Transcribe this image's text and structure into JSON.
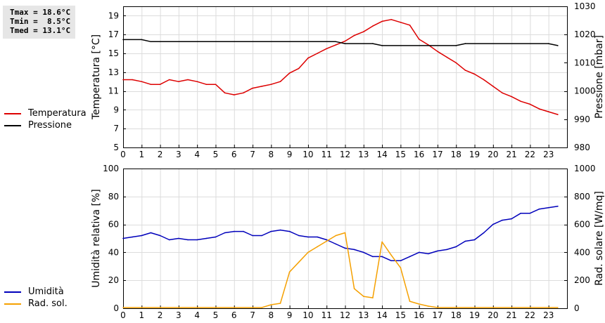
{
  "stats": {
    "tmax": "Tmax = 18.6°C",
    "tmin": "Tmin =  8.5°C",
    "tmed": "Tmed = 13.1°C"
  },
  "legend_top": [
    {
      "label": "Temperatura",
      "color": "#dd0000"
    },
    {
      "label": "Pressione",
      "color": "#000000"
    }
  ],
  "legend_bottom": [
    {
      "label": "Umidità",
      "color": "#0000bb"
    },
    {
      "label": "Rad. sol.",
      "color": "#f5a000"
    }
  ],
  "chart_data": [
    {
      "type": "line",
      "xlim": [
        0,
        24
      ],
      "xticks": [
        0,
        1,
        2,
        3,
        4,
        5,
        6,
        7,
        8,
        9,
        10,
        11,
        12,
        13,
        14,
        15,
        16,
        17,
        18,
        19,
        20,
        21,
        22,
        23
      ],
      "ylabel": "Temperatura [°C]",
      "ylim": [
        5,
        20
      ],
      "yticks": [
        5,
        7,
        9,
        11,
        13,
        15,
        17,
        19
      ],
      "y2label": "Pressione [mbar]",
      "y2lim": [
        980,
        1030
      ],
      "y2ticks": [
        980,
        990,
        1000,
        1010,
        1020,
        1030
      ],
      "grid": true,
      "series": [
        {
          "name": "Temperatura",
          "axis": "left",
          "color": "#dd0000",
          "x": [
            0,
            0.5,
            1,
            1.5,
            2,
            2.5,
            3,
            3.5,
            4,
            4.5,
            5,
            5.5,
            6,
            6.5,
            7,
            7.5,
            8,
            8.5,
            9,
            9.5,
            10,
            10.5,
            11,
            11.5,
            12,
            12.5,
            13,
            13.5,
            14,
            14.5,
            15,
            15.5,
            16,
            16.5,
            17,
            17.5,
            18,
            18.5,
            19,
            19.5,
            20,
            20.5,
            21,
            21.5,
            22,
            22.5,
            23,
            23.5
          ],
          "values": [
            12.2,
            12.2,
            12.0,
            11.7,
            11.7,
            12.2,
            12.0,
            12.2,
            12.0,
            11.7,
            11.7,
            10.8,
            10.6,
            10.8,
            11.3,
            11.5,
            11.7,
            12.0,
            12.9,
            13.4,
            14.5,
            15.0,
            15.5,
            15.9,
            16.3,
            16.9,
            17.3,
            17.9,
            18.4,
            18.6,
            18.3,
            18.0,
            16.5,
            15.9,
            15.2,
            14.6,
            14.0,
            13.2,
            12.8,
            12.2,
            11.5,
            10.8,
            10.4,
            9.9,
            9.6,
            9.1,
            8.8,
            8.5
          ]
        },
        {
          "name": "Pressione",
          "axis": "right",
          "color": "#000000",
          "x": [
            0,
            1,
            1.5,
            2,
            11.5,
            12,
            13.5,
            14,
            18,
            18.5,
            23,
            23.5
          ],
          "values": [
            1018.2,
            1018.2,
            1017.5,
            1017.5,
            1017.5,
            1016.8,
            1016.8,
            1016.1,
            1016.1,
            1016.8,
            1016.8,
            1016.1
          ]
        }
      ]
    },
    {
      "type": "line",
      "xlim": [
        0,
        24
      ],
      "xticks": [
        0,
        1,
        2,
        3,
        4,
        5,
        6,
        7,
        8,
        9,
        10,
        11,
        12,
        13,
        14,
        15,
        16,
        17,
        18,
        19,
        20,
        21,
        22,
        23
      ],
      "ylabel": "Umidità relativa [%]",
      "ylim": [
        0,
        100
      ],
      "yticks": [
        0,
        20,
        40,
        60,
        80,
        100
      ],
      "y2label": "Rad. solare [W/mq]",
      "y2lim": [
        0,
        1000
      ],
      "y2ticks": [
        0,
        200,
        400,
        600,
        800,
        1000
      ],
      "grid": true,
      "series": [
        {
          "name": "Umidità",
          "axis": "left",
          "color": "#0000bb",
          "x": [
            0,
            0.5,
            1,
            1.5,
            2,
            2.5,
            3,
            3.5,
            4,
            4.5,
            5,
            5.5,
            6,
            6.5,
            7,
            7.5,
            8,
            8.5,
            9,
            9.5,
            10,
            10.5,
            11,
            11.5,
            12,
            12.5,
            13,
            13.5,
            14,
            14.5,
            15,
            15.5,
            16,
            16.5,
            17,
            17.5,
            18,
            18.5,
            19,
            19.5,
            20,
            20.5,
            21,
            21.5,
            22,
            22.5,
            23,
            23.5
          ],
          "values": [
            50,
            51,
            52,
            54,
            52,
            49,
            50,
            49,
            49,
            50,
            51,
            54,
            55,
            55,
            52,
            52,
            55,
            56,
            55,
            52,
            51,
            51,
            49,
            46,
            43,
            42,
            40,
            37,
            37,
            34,
            34,
            37,
            40,
            39,
            41,
            42,
            44,
            48,
            49,
            54,
            60,
            63,
            64,
            68,
            68,
            71,
            72,
            73
          ]
        },
        {
          "name": "Rad. sol.",
          "axis": "right",
          "color": "#f5a000",
          "x": [
            0,
            7.5,
            8,
            8.5,
            9,
            9.5,
            10,
            10.5,
            11,
            11.5,
            12,
            12.5,
            13,
            13.5,
            14,
            14.5,
            15,
            15.5,
            16,
            16.5,
            17,
            23.5
          ],
          "values": [
            5,
            5,
            25,
            35,
            260,
            330,
            400,
            440,
            480,
            520,
            540,
            140,
            85,
            75,
            475,
            380,
            290,
            50,
            30,
            15,
            5,
            5
          ]
        }
      ]
    }
  ]
}
